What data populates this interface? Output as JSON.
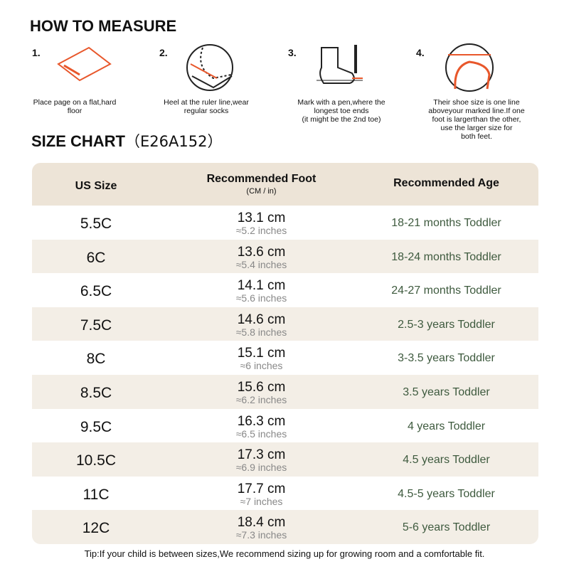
{
  "header": {
    "title": "HOW TO MEASURE"
  },
  "steps": [
    {
      "number": "1.",
      "caption": [
        "Place page on a flat,hard",
        "floor"
      ]
    },
    {
      "number": "2.",
      "caption": [
        "Heel at the ruler line,wear",
        "regular socks"
      ]
    },
    {
      "number": "3.",
      "caption": [
        "Mark with a pen,where the",
        "longest toe ends",
        "(it might be the 2nd toe)"
      ]
    },
    {
      "number": "4.",
      "caption": [
        "Their shoe size is one line",
        "aboveyour marked line.If one",
        "foot is largerthan the other,",
        "use the larger size for",
        "both feet."
      ]
    }
  ],
  "size_chart": {
    "title": "SIZE CHART",
    "code": "（E26A152）"
  },
  "table": {
    "header": {
      "size": "US Size",
      "foot": "Recommended Foot",
      "foot_unit": "(CM / in)",
      "age": "Recommended Age"
    },
    "rows": [
      [
        "5.5C",
        "13.1 cm",
        "≈5.2 inches",
        "18-21 months Toddler"
      ],
      [
        "6C",
        "13.6 cm",
        "≈5.4 inches",
        "18-24 months Toddler"
      ],
      [
        "6.5C",
        "14.1 cm",
        "≈5.6 inches",
        "24-27 months Toddler"
      ],
      [
        "7.5C",
        "14.6 cm",
        "≈5.8 inches",
        "2.5-3 years Toddler"
      ],
      [
        "8C",
        "15.1 cm",
        "≈6 inches",
        "3-3.5 years Toddler"
      ],
      [
        "8.5C",
        "15.6 cm",
        "≈6.2 inches",
        "3.5 years Toddler"
      ],
      [
        "9.5C",
        "16.3 cm",
        "≈6.5 inches",
        "4 years Toddler"
      ],
      [
        "10.5C",
        "17.3 cm",
        "≈6.9 inches",
        "4.5 years Toddler"
      ],
      [
        "11C",
        "17.7 cm",
        "≈7 inches",
        "4.5-5 years Toddler"
      ],
      [
        "12C",
        "18.4 cm",
        "≈7.3 inches",
        "5-6 years Toddler"
      ]
    ]
  },
  "tip": "Tip:If your child is between sizes,We recommend sizing up for growing room and a comfortable fit."
}
